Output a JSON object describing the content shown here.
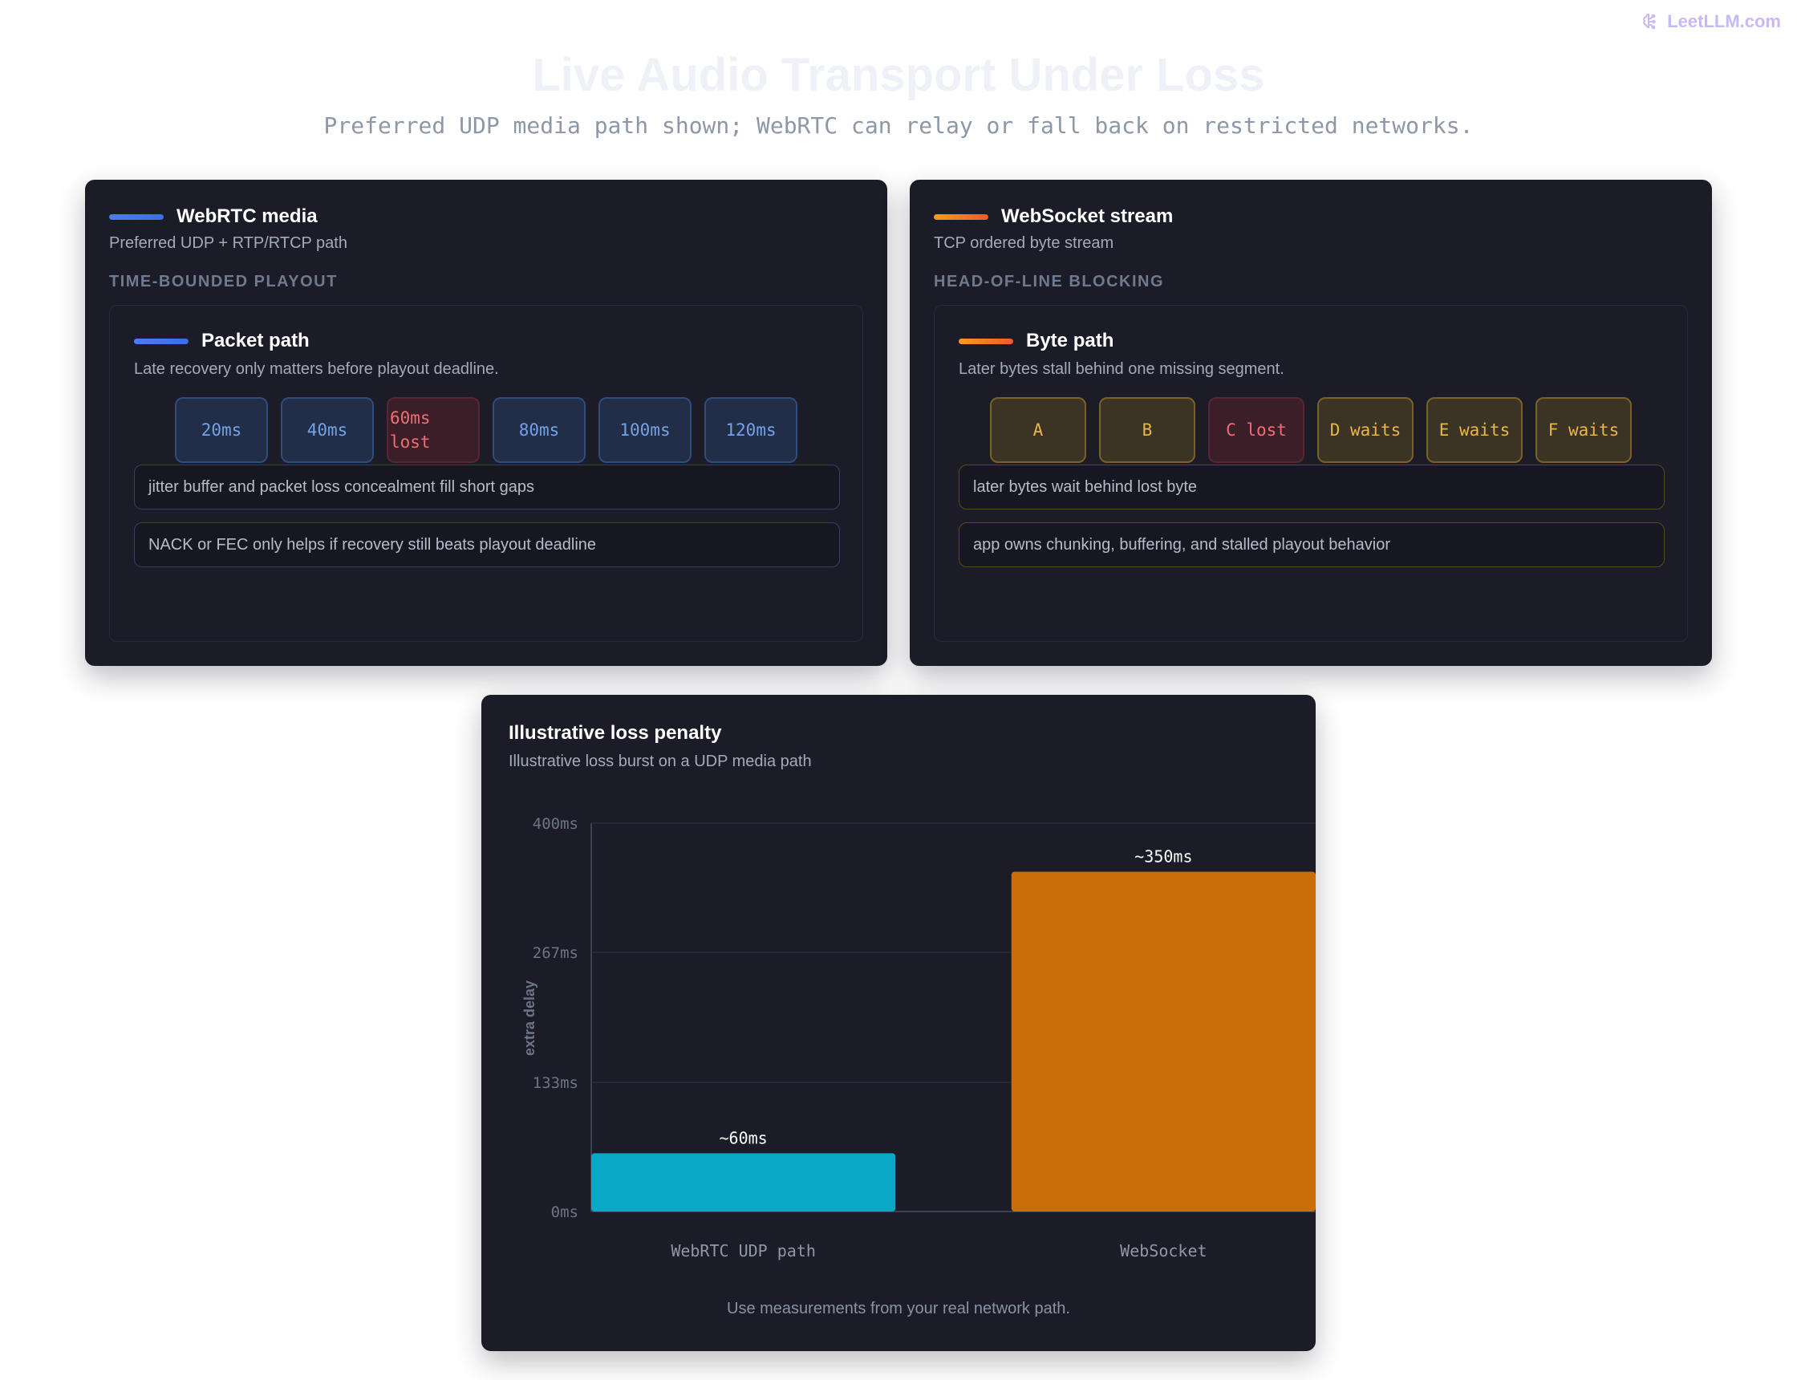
{
  "brand": {
    "label": "LeetLLM.com",
    "icon": "brain-icon",
    "color": "#c9b8f2"
  },
  "header": {
    "title": "Live Audio Transport Under Loss",
    "subtitle": "Preferred UDP media path shown; WebRTC can relay or fall back on restricted networks."
  },
  "webrtc": {
    "title": "WebRTC media",
    "subtitle": "Preferred UDP + RTP/RTCP path",
    "section": "TIME-BOUNDED PLAYOUT",
    "accent": "#4c7cf0",
    "panel": {
      "title": "Packet path",
      "subtitle": "Late recovery only matters before playout deadline.",
      "chips": [
        "20ms",
        "40ms",
        "60ms lost",
        "80ms",
        "100ms",
        "120ms"
      ],
      "notes": [
        "jitter buffer and packet loss concealment fill short gaps",
        "NACK or FEC only helps if recovery still beats playout deadline"
      ]
    }
  },
  "websocket": {
    "title": "WebSocket stream",
    "subtitle": "TCP ordered byte stream",
    "section": "HEAD-OF-LINE BLOCKING",
    "accent": "#f59c1a",
    "panel": {
      "title": "Byte path",
      "subtitle": "Later bytes stall behind one missing segment.",
      "chips": [
        "A",
        "B",
        "C lost",
        "D waits",
        "E waits",
        "F waits"
      ],
      "notes": [
        "later bytes wait behind lost byte",
        "app owns chunking, buffering, and stalled playout behavior"
      ]
    }
  },
  "chart": {
    "footer": "Use measurements from your real network path."
  },
  "chart_data": {
    "type": "bar",
    "title": "Illustrative loss penalty",
    "subtitle": "Illustrative loss burst on a UDP media path",
    "ylabel": "extra delay",
    "xlabel": "",
    "categories": [
      "WebRTC UDP path",
      "WebSocket"
    ],
    "values": [
      60,
      350
    ],
    "value_labels": [
      "~60ms",
      "~350ms"
    ],
    "colors": [
      "#08a8c6",
      "#cc6e07"
    ],
    "ylim": [
      0,
      400
    ],
    "yticks": [
      0,
      133,
      267,
      400
    ],
    "ytick_labels": [
      "0ms",
      "133ms",
      "267ms",
      "400ms"
    ],
    "grid": true,
    "legend": "none"
  }
}
